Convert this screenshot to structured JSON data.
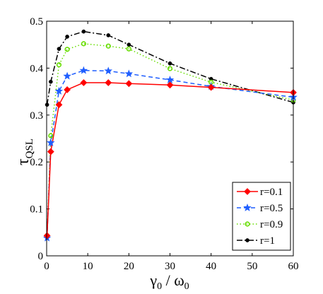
{
  "chart_data": {
    "type": "line",
    "title": "",
    "xlabel": {
      "main": "γ",
      "sub1": "0",
      "sep": " / ",
      "main2": "ω",
      "sub2": "0"
    },
    "ylabel": {
      "main": "τ",
      "sub": "QSL"
    },
    "xlim": [
      0,
      60
    ],
    "ylim": [
      0,
      0.5
    ],
    "xticks": [
      0,
      10,
      20,
      30,
      40,
      50,
      60
    ],
    "yticks": [
      0,
      0.1,
      0.2,
      0.3,
      0.4,
      0.5
    ],
    "xtick_labels": [
      "0",
      "10",
      "20",
      "30",
      "40",
      "50",
      "60"
    ],
    "ytick_labels": [
      "0",
      "0.1",
      "0.2",
      "0.3",
      "0.4",
      "0.5"
    ],
    "grid": false,
    "legend_position": "bottom-right",
    "x": [
      0.1,
      1,
      3,
      5,
      9,
      15,
      20,
      30,
      40,
      60
    ],
    "series": [
      {
        "name": "r=0.1",
        "color": "#ff0000",
        "marker": "diamond",
        "line_style": "solid",
        "values": [
          0.043,
          0.222,
          0.322,
          0.354,
          0.369,
          0.369,
          0.367,
          0.364,
          0.359,
          0.348
        ]
      },
      {
        "name": "r=0.5",
        "color": "#1f5eff",
        "marker": "star",
        "line_style": "dashed",
        "values": [
          0.038,
          0.241,
          0.351,
          0.383,
          0.395,
          0.394,
          0.388,
          0.375,
          0.361,
          0.338
        ]
      },
      {
        "name": "r=0.9",
        "color": "#66dd00",
        "marker": "circle-open",
        "line_style": "dotted",
        "values": [
          0.043,
          0.256,
          0.407,
          0.44,
          0.452,
          0.447,
          0.441,
          0.399,
          0.37,
          0.332
        ]
      },
      {
        "name": "r=1",
        "color": "#000000",
        "marker": "dot",
        "line_style": "dashdot",
        "values": [
          0.322,
          0.371,
          0.441,
          0.467,
          0.478,
          0.47,
          0.45,
          0.41,
          0.377,
          0.327
        ]
      }
    ]
  }
}
